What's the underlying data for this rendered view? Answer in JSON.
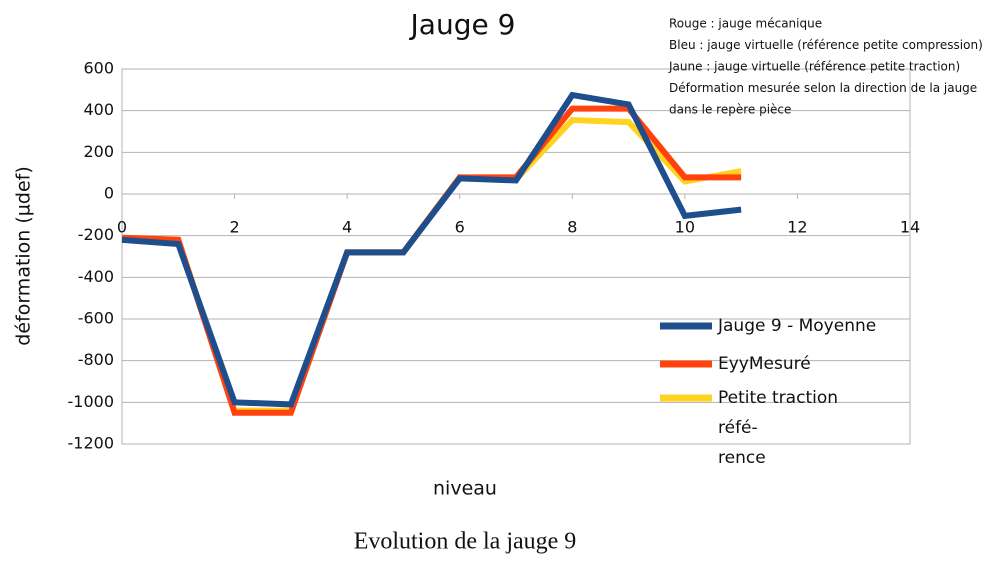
{
  "chart_data": {
    "type": "line",
    "title": "Jauge 9",
    "annotation_lines": [
      "Rouge : jauge mécanique",
      "Bleu : jauge virtuelle (référence petite compression)",
      "Jaune : jauge virtuelle (référence petite traction)",
      "Déformation mesurée selon la direction de la jauge",
      "dans le repère pièce"
    ],
    "x_label": "niveau",
    "y_label": "déformation (µdef)",
    "x": [
      0,
      1,
      2,
      3,
      4,
      5,
      6,
      7,
      8,
      9,
      10,
      11
    ],
    "series": [
      {
        "name": "Jauge 9 - Moyenne",
        "color": "#1f4e8c",
        "values": [
          -220,
          -240,
          -1000,
          -1010,
          -280,
          -280,
          75,
          65,
          475,
          430,
          -105,
          -75
        ]
      },
      {
        "name": "EyyMesuré",
        "color": "#ff420e",
        "values": [
          -210,
          -220,
          -1050,
          -1050,
          -280,
          -280,
          80,
          80,
          410,
          410,
          80,
          80
        ]
      },
      {
        "name": "Petite traction réfé-\nrence",
        "color": "#ffd320",
        "values": [
          -210,
          -220,
          -1040,
          -1040,
          -280,
          -280,
          80,
          70,
          355,
          345,
          60,
          110
        ]
      }
    ],
    "xlim": [
      0,
      14
    ],
    "xticks": [
      0,
      2,
      4,
      6,
      8,
      10,
      12,
      14
    ],
    "ylim": [
      -1200,
      600
    ],
    "yticks": [
      -1200,
      -1000,
      -800,
      -600,
      -400,
      -200,
      0,
      200,
      400,
      600
    ],
    "grid": true,
    "legend": "right",
    "caption": "Evolution de la jauge 9"
  }
}
